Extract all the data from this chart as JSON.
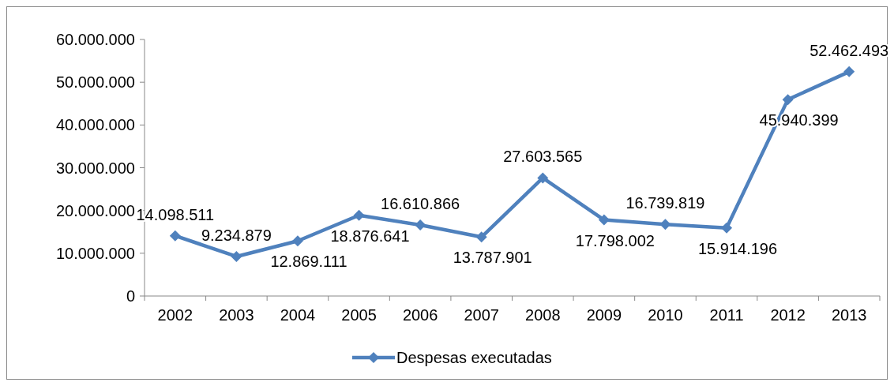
{
  "chart_data": {
    "type": "line",
    "categories": [
      "2002",
      "2003",
      "2004",
      "2005",
      "2006",
      "2007",
      "2008",
      "2009",
      "2010",
      "2011",
      "2012",
      "2013"
    ],
    "series": [
      {
        "name": "Despesas executadas",
        "color": "#4f81bd",
        "values": [
          14098511,
          9234879,
          12869111,
          18876641,
          16610866,
          13787901,
          27603565,
          17798002,
          16739819,
          15914196,
          45940399,
          52462493
        ],
        "value_labels": [
          "14.098.511",
          "9.234.879",
          "12.869.111",
          "18.876.641",
          "16.610.866",
          "13.787.901",
          "27.603.565",
          "17.798.002",
          "16.739.819",
          "15.914.196",
          "45.940.399",
          "52.462.493"
        ]
      }
    ],
    "ylim": [
      0,
      60000000
    ],
    "yticks": [
      {
        "value": 0,
        "label": "0"
      },
      {
        "value": 10000000,
        "label": "10.000.000"
      },
      {
        "value": 20000000,
        "label": "20.000.000"
      },
      {
        "value": 30000000,
        "label": "30.000.000"
      },
      {
        "value": 40000000,
        "label": "40.000.000"
      },
      {
        "value": 50000000,
        "label": "50.000.000"
      },
      {
        "value": 60000000,
        "label": "60.000.000"
      }
    ],
    "grid": false,
    "legend": "bottom",
    "marker": "diamond",
    "line_style": "solid"
  }
}
